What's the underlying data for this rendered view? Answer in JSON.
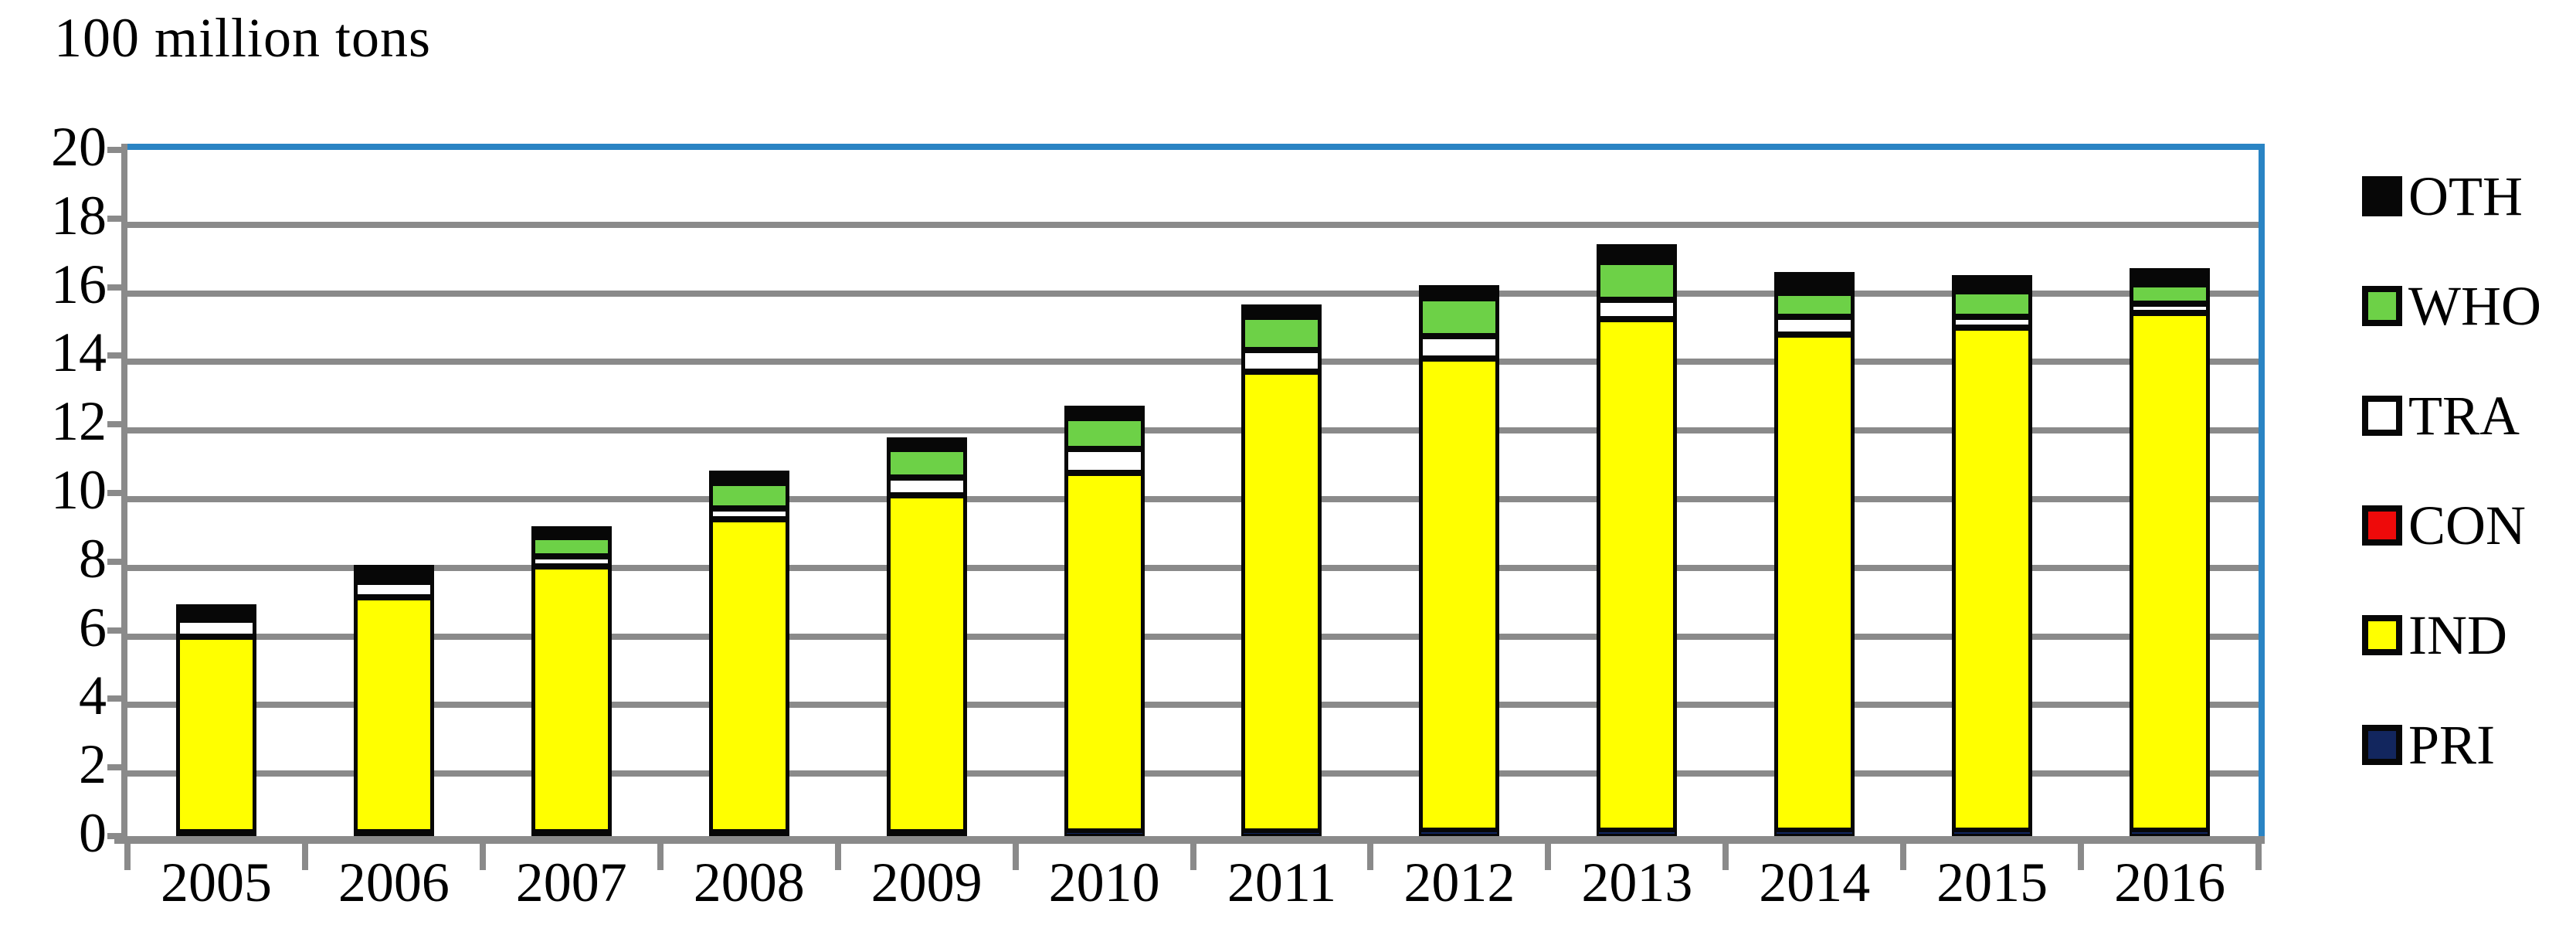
{
  "title": "100 million tons",
  "colors": {
    "plot_border_blue": "#2A84C4",
    "gridline_gray": "#8A8A8A",
    "segment_outline": "#070707",
    "text": "#000000"
  },
  "chart_data": {
    "type": "bar",
    "stacked": true,
    "title": "100 million tons",
    "xlabel": "",
    "ylabel": "100 million tons",
    "ylim": [
      0,
      20
    ],
    "grid": true,
    "legend_position": "right",
    "y_ticks": [
      "20",
      "18",
      "16",
      "14",
      "12",
      "10",
      "8",
      "6",
      "4",
      "2",
      "0"
    ],
    "categories": [
      "2005",
      "2006",
      "2007",
      "2008",
      "2009",
      "2010",
      "2011",
      "2012",
      "2013",
      "2014",
      "2015",
      "2016"
    ],
    "totals": [
      6.6,
      7.85,
      9.0,
      10.65,
      11.6,
      12.55,
      15.5,
      16.05,
      17.25,
      16.45,
      16.35,
      16.55
    ],
    "series": [
      {
        "name": "PRI",
        "color": "#12265E",
        "values": [
          0.1,
          0.1,
          0.1,
          0.12,
          0.12,
          0.15,
          0.15,
          0.18,
          0.18,
          0.18,
          0.18,
          0.18
        ]
      },
      {
        "name": "IND",
        "color": "#FFFF00",
        "values": [
          5.7,
          6.85,
          7.75,
          9.13,
          9.83,
          10.45,
          13.4,
          13.77,
          14.92,
          14.47,
          14.67,
          15.1
        ]
      },
      {
        "name": "CON",
        "color": "#EE0A0A",
        "values": [
          0,
          0,
          0,
          0,
          0,
          0,
          0,
          0,
          0,
          0,
          0,
          0
        ]
      },
      {
        "name": "TRA",
        "color": "#FFFFFF",
        "values": [
          0.5,
          0.45,
          0.3,
          0.3,
          0.5,
          0.7,
          0.65,
          0.65,
          0.55,
          0.5,
          0.3,
          0.27
        ]
      },
      {
        "name": "WHO",
        "color": "#6DD147",
        "values": [
          0.05,
          0.15,
          0.55,
          0.75,
          0.85,
          0.9,
          0.95,
          1.1,
          1.1,
          0.7,
          0.75,
          0.55
        ]
      },
      {
        "name": "OTH",
        "color": "#070707",
        "values": [
          0.25,
          0.3,
          0.3,
          0.35,
          0.3,
          0.35,
          0.35,
          0.35,
          0.5,
          0.6,
          0.45,
          0.45
        ]
      }
    ]
  },
  "legend": {
    "items": [
      {
        "label": "OTH",
        "color": "#070707"
      },
      {
        "label": "WHO",
        "color": "#6DD147"
      },
      {
        "label": "TRA",
        "color": "#FFFFFF"
      },
      {
        "label": "CON",
        "color": "#EE0A0A"
      },
      {
        "label": "IND",
        "color": "#FFFF00"
      },
      {
        "label": "PRI",
        "color": "#12265E"
      }
    ]
  }
}
